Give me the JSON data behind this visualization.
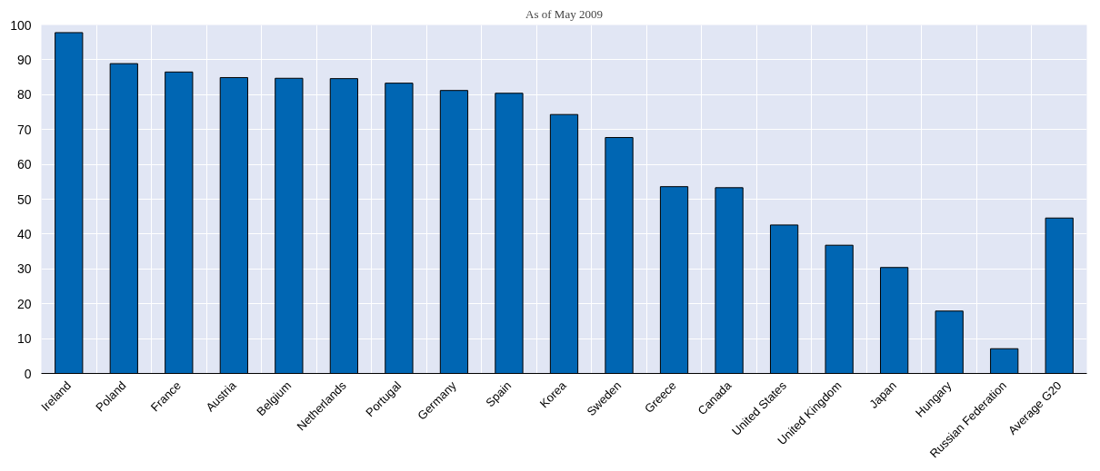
{
  "chart_data": {
    "type": "bar",
    "title": "As of May 2009",
    "categories": [
      "Ireland",
      "Poland",
      "France",
      "Austria",
      "Belgium",
      "Netherlands",
      "Portugal",
      "Germany",
      "Spain",
      "Korea",
      "Sweden",
      "Greece",
      "Canada",
      "United States",
      "United Kingdom",
      "Japan",
      "Hungary",
      "Russian Federation",
      "Average G20"
    ],
    "values": [
      97.8,
      88.9,
      86.5,
      84.9,
      84.7,
      84.6,
      83.3,
      81.2,
      80.4,
      74.3,
      67.7,
      53.6,
      53.3,
      42.6,
      36.8,
      30.4,
      17.9,
      7.1,
      44.6
    ],
    "color": "#0066b3",
    "ylim": [
      0,
      100
    ],
    "yticks": [
      0,
      10,
      20,
      30,
      40,
      50,
      60,
      70,
      80,
      90,
      100
    ],
    "grid": true
  }
}
